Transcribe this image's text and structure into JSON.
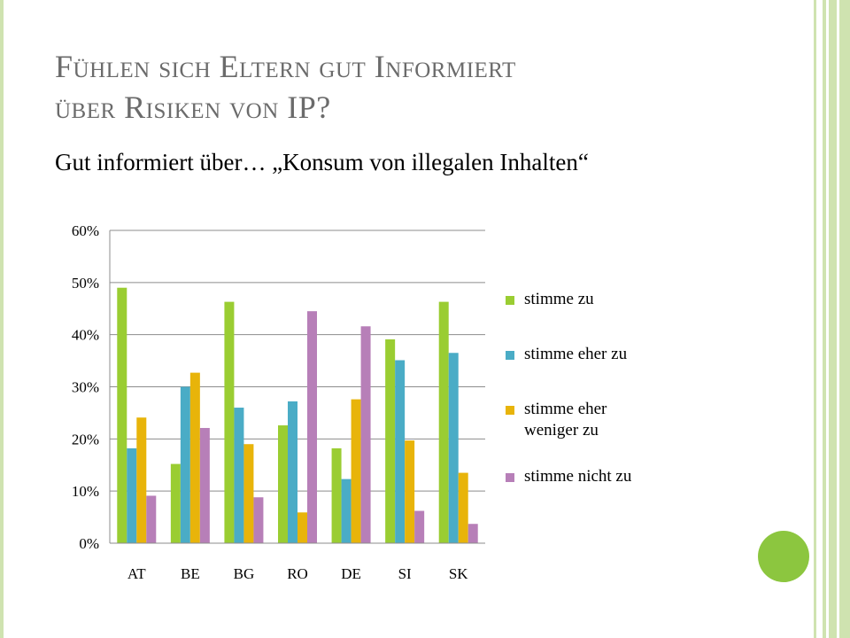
{
  "slide": {
    "title_line1": "Fühlen sich Eltern gut Informiert",
    "title_line2": "über Risiken von IP?",
    "subtitle": "Gut informiert über… „Konsum von illegalen Inhalten“"
  },
  "colors": {
    "frame": "#cfe3b0",
    "accent_circle": "#8cc63f",
    "title": "#6b6b6b"
  },
  "chart_data": {
    "type": "bar",
    "title": "",
    "xlabel": "",
    "ylabel": "",
    "categories": [
      "AT",
      "BE",
      "BG",
      "RO",
      "DE",
      "SI",
      "SK"
    ],
    "ylim": [
      0,
      60
    ],
    "yticks": [
      0,
      10,
      20,
      30,
      40,
      50,
      60
    ],
    "ytick_labels": [
      "0%",
      "10%",
      "20%",
      "30%",
      "40%",
      "50%",
      "60%"
    ],
    "grid": true,
    "legend_position": "right",
    "series": [
      {
        "name": "stimme zu",
        "color": "#9acd32",
        "values": [
          49,
          15.2,
          46.3,
          22.6,
          18.2,
          39.1,
          46.3
        ]
      },
      {
        "name": "stimme eher zu",
        "color": "#4aacc6",
        "values": [
          18.2,
          30,
          26,
          27.2,
          12.3,
          35.1,
          36.5
        ]
      },
      {
        "name": "stimme eher weniger zu",
        "color": "#e8b40a",
        "values": [
          24.1,
          32.7,
          19,
          5.9,
          27.6,
          19.7,
          13.5
        ]
      },
      {
        "name": "stimme nicht zu",
        "color": "#b77fb8",
        "values": [
          9.1,
          22.1,
          8.8,
          44.5,
          41.6,
          6.2,
          3.7
        ]
      }
    ]
  }
}
